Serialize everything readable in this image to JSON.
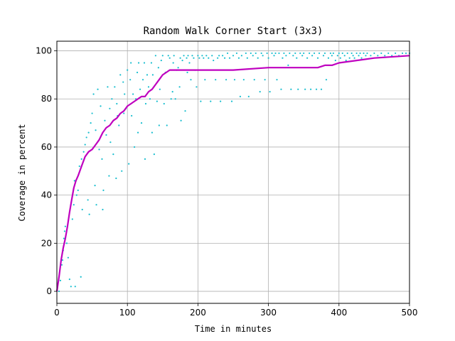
{
  "chart_data": {
    "type": "scatter",
    "title": "Random Walk Corner Start (3x3)",
    "xlabel": "Time in minutes",
    "ylabel": "Coverage in percent",
    "xlim": [
      0,
      500
    ],
    "ylim": [
      -5,
      104
    ],
    "xticks": [
      0,
      100,
      200,
      300,
      400,
      500
    ],
    "yticks": [
      0,
      20,
      40,
      60,
      80,
      100
    ],
    "grid": true,
    "colors": {
      "scatter": "#17becf",
      "mean": "#bf00bf"
    },
    "series": [
      {
        "type": "scatter",
        "points": [
          [
            3,
            0
          ],
          [
            5,
            4.5
          ],
          [
            7,
            11
          ],
          [
            8,
            13
          ],
          [
            9,
            17
          ],
          [
            10,
            22
          ],
          [
            11,
            25
          ],
          [
            12,
            27
          ],
          [
            14,
            20
          ],
          [
            16,
            14
          ],
          [
            18,
            5
          ],
          [
            20,
            2
          ],
          [
            22,
            30
          ],
          [
            24,
            36
          ],
          [
            25,
            46
          ],
          [
            26,
            2
          ],
          [
            28,
            40
          ],
          [
            30,
            42
          ],
          [
            32,
            52
          ],
          [
            34,
            6
          ],
          [
            35,
            55
          ],
          [
            36,
            34
          ],
          [
            38,
            58
          ],
          [
            40,
            61
          ],
          [
            42,
            64
          ],
          [
            44,
            38
          ],
          [
            45,
            66
          ],
          [
            46,
            32
          ],
          [
            48,
            70
          ],
          [
            50,
            74
          ],
          [
            52,
            82
          ],
          [
            54,
            44
          ],
          [
            55,
            67
          ],
          [
            56,
            36
          ],
          [
            58,
            84
          ],
          [
            60,
            59
          ],
          [
            62,
            77
          ],
          [
            64,
            55
          ],
          [
            65,
            34
          ],
          [
            66,
            42
          ],
          [
            68,
            71
          ],
          [
            70,
            65
          ],
          [
            72,
            85
          ],
          [
            74,
            48
          ],
          [
            75,
            76
          ],
          [
            76,
            62
          ],
          [
            78,
            80
          ],
          [
            80,
            57
          ],
          [
            82,
            85
          ],
          [
            84,
            47
          ],
          [
            85,
            78
          ],
          [
            86,
            73
          ],
          [
            88,
            69
          ],
          [
            90,
            90
          ],
          [
            92,
            50
          ],
          [
            94,
            87
          ],
          [
            95,
            74
          ],
          [
            96,
            82
          ],
          [
            98,
            76
          ],
          [
            100,
            92
          ],
          [
            102,
            53
          ],
          [
            104,
            88
          ],
          [
            105,
            95
          ],
          [
            106,
            73
          ],
          [
            108,
            82
          ],
          [
            110,
            60
          ],
          [
            112,
            80
          ],
          [
            114,
            91
          ],
          [
            115,
            66
          ],
          [
            116,
            95
          ],
          [
            118,
            84
          ],
          [
            120,
            70
          ],
          [
            122,
            88
          ],
          [
            124,
            95
          ],
          [
            125,
            55
          ],
          [
            126,
            78
          ],
          [
            128,
            90
          ],
          [
            130,
            85
          ],
          [
            132,
            80
          ],
          [
            134,
            95
          ],
          [
            135,
            66
          ],
          [
            136,
            90
          ],
          [
            138,
            57
          ],
          [
            140,
            98
          ],
          [
            142,
            79
          ],
          [
            144,
            93
          ],
          [
            145,
            69
          ],
          [
            146,
            84
          ],
          [
            148,
            96
          ],
          [
            150,
            98
          ],
          [
            152,
            78
          ],
          [
            154,
            91
          ],
          [
            156,
            69
          ],
          [
            158,
            98
          ],
          [
            160,
            97
          ],
          [
            162,
            80
          ],
          [
            164,
            83
          ],
          [
            165,
            95
          ],
          [
            166,
            98
          ],
          [
            168,
            80
          ],
          [
            170,
            92
          ],
          [
            172,
            93
          ],
          [
            174,
            85
          ],
          [
            175,
            97
          ],
          [
            176,
            71
          ],
          [
            178,
            96
          ],
          [
            180,
            98
          ],
          [
            182,
            75
          ],
          [
            184,
            97
          ],
          [
            185,
            91
          ],
          [
            186,
            98
          ],
          [
            188,
            95
          ],
          [
            190,
            88
          ],
          [
            192,
            98
          ],
          [
            194,
            97
          ],
          [
            196,
            92
          ],
          [
            198,
            85
          ],
          [
            200,
            98
          ],
          [
            202,
            97
          ],
          [
            204,
            79
          ],
          [
            206,
            98
          ],
          [
            208,
            97
          ],
          [
            210,
            88
          ],
          [
            212,
            98
          ],
          [
            215,
            97
          ],
          [
            218,
            79
          ],
          [
            220,
            98
          ],
          [
            222,
            96
          ],
          [
            225,
            88
          ],
          [
            228,
            97
          ],
          [
            230,
            98
          ],
          [
            232,
            79
          ],
          [
            235,
            98
          ],
          [
            238,
            97
          ],
          [
            240,
            88
          ],
          [
            242,
            99
          ],
          [
            245,
            97
          ],
          [
            248,
            79
          ],
          [
            250,
            98
          ],
          [
            252,
            88
          ],
          [
            255,
            99
          ],
          [
            258,
            97
          ],
          [
            260,
            81
          ],
          [
            262,
            98
          ],
          [
            265,
            88
          ],
          [
            268,
            99
          ],
          [
            270,
            97
          ],
          [
            272,
            81
          ],
          [
            275,
            99
          ],
          [
            278,
            98
          ],
          [
            280,
            88
          ],
          [
            282,
            99
          ],
          [
            285,
            97
          ],
          [
            288,
            83
          ],
          [
            290,
            99
          ],
          [
            292,
            98
          ],
          [
            295,
            88
          ],
          [
            298,
            99
          ],
          [
            300,
            97
          ],
          [
            302,
            83
          ],
          [
            305,
            99
          ],
          [
            308,
            98
          ],
          [
            310,
            99
          ],
          [
            312,
            88
          ],
          [
            315,
            99
          ],
          [
            318,
            84
          ],
          [
            320,
            97
          ],
          [
            322,
            99
          ],
          [
            325,
            98
          ],
          [
            328,
            94
          ],
          [
            330,
            99
          ],
          [
            332,
            84
          ],
          [
            335,
            98
          ],
          [
            338,
            99
          ],
          [
            340,
            97
          ],
          [
            342,
            84
          ],
          [
            345,
            99
          ],
          [
            348,
            98
          ],
          [
            350,
            99
          ],
          [
            352,
            84
          ],
          [
            355,
            97
          ],
          [
            358,
            99
          ],
          [
            360,
            84
          ],
          [
            362,
            98
          ],
          [
            365,
            99
          ],
          [
            368,
            84
          ],
          [
            370,
            97
          ],
          [
            372,
            99
          ],
          [
            375,
            84
          ],
          [
            378,
            98
          ],
          [
            380,
            99
          ],
          [
            382,
            88
          ],
          [
            385,
            97
          ],
          [
            388,
            99
          ],
          [
            390,
            98
          ],
          [
            392,
            99
          ],
          [
            395,
            96
          ],
          [
            398,
            98
          ],
          [
            400,
            99
          ],
          [
            402,
            97
          ],
          [
            405,
            99
          ],
          [
            408,
            98
          ],
          [
            410,
            96
          ],
          [
            412,
            99
          ],
          [
            415,
            97
          ],
          [
            418,
            99
          ],
          [
            420,
            98
          ],
          [
            422,
            97
          ],
          [
            425,
            99
          ],
          [
            428,
            98
          ],
          [
            430,
            99
          ],
          [
            432,
            97
          ],
          [
            435,
            99
          ],
          [
            438,
            98
          ],
          [
            440,
            99
          ],
          [
            445,
            98
          ],
          [
            450,
            99
          ],
          [
            455,
            98
          ],
          [
            460,
            99
          ],
          [
            465,
            98
          ],
          [
            470,
            99
          ],
          [
            475,
            98
          ],
          [
            480,
            99
          ],
          [
            485,
            98
          ],
          [
            490,
            99
          ],
          [
            495,
            99
          ],
          [
            500,
            99
          ]
        ]
      },
      {
        "type": "line",
        "x": [
          0,
          3,
          6,
          9,
          12,
          15,
          18,
          21,
          24,
          27,
          30,
          35,
          40,
          45,
          50,
          55,
          60,
          65,
          70,
          75,
          80,
          85,
          90,
          95,
          100,
          105,
          110,
          115,
          120,
          125,
          130,
          135,
          140,
          145,
          150,
          155,
          160,
          165,
          170,
          180,
          200,
          250,
          300,
          350,
          370,
          380,
          385,
          390,
          400,
          450,
          500
        ],
        "y": [
          0,
          6,
          13,
          18,
          22,
          27,
          33,
          38,
          43,
          46,
          48,
          52,
          56,
          58,
          59,
          61,
          63,
          66,
          68,
          69,
          71,
          72,
          74,
          75,
          77,
          78,
          79,
          80,
          81,
          81,
          83,
          84,
          86,
          88,
          90,
          91,
          92,
          92,
          92,
          92,
          92,
          92,
          93,
          93,
          93,
          94,
          94,
          94,
          95,
          97,
          98
        ]
      }
    ]
  }
}
